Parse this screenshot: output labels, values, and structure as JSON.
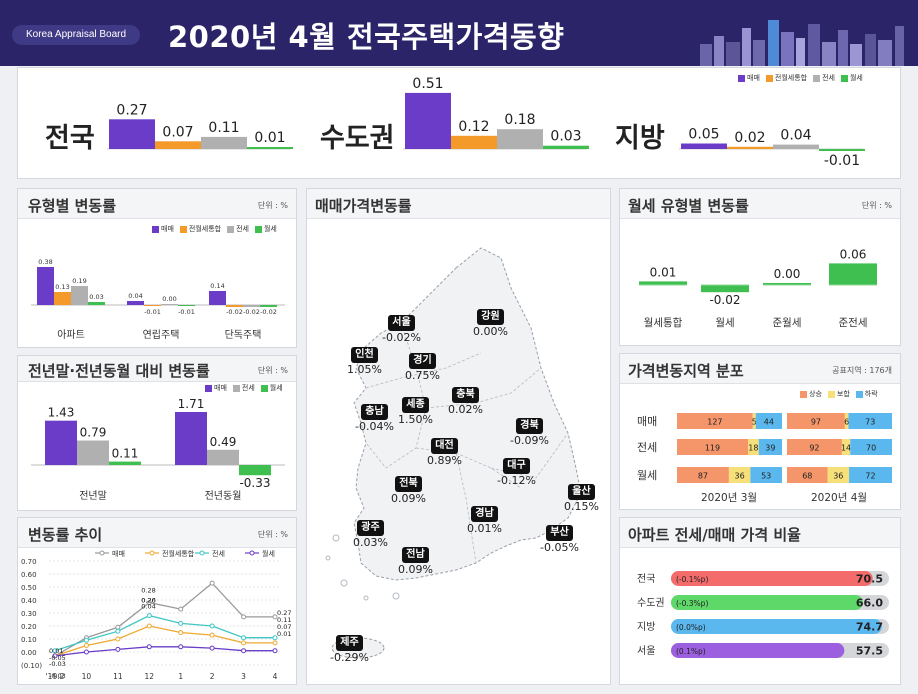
{
  "header": {
    "badge": "Korea Appraisal Board",
    "title": "2020년 4월  전국주택가격동향"
  },
  "top_legend": [
    "매매",
    "전월세통합",
    "전세",
    "월세"
  ],
  "colors": {
    "sale": "#6a3cc8",
    "rent_all": "#f39a2b",
    "jeonse": "#b0b0b0",
    "wolse": "#3fbf4f",
    "rise": "#f4956a",
    "flat": "#f7df7a",
    "fall": "#5ab8ee",
    "header_bg": "#2b2468"
  },
  "summary": [
    {
      "region": "전국",
      "values": [
        "0.27",
        "0.07",
        "0.11",
        "0.01"
      ]
    },
    {
      "region": "수도권",
      "values": [
        "0.51",
        "0.12",
        "0.18",
        "0.03"
      ]
    },
    {
      "region": "지방",
      "values": [
        "0.05",
        "0.02",
        "0.04",
        "-0.01"
      ]
    }
  ],
  "type_panel": {
    "title": "유형별 변동률",
    "unit": "단위 : %",
    "legend": [
      "매매",
      "전월세통합",
      "전세",
      "월세"
    ]
  },
  "yoy_panel": {
    "title": "전년말·전년동월 대비 변동률",
    "unit": "단위 : %",
    "legend": [
      "매매",
      "전세",
      "월세"
    ]
  },
  "trend_panel": {
    "title": "변동률 추이",
    "unit": "단위 : %",
    "legend": [
      "매매",
      "전월세통합",
      "전세",
      "월세"
    ]
  },
  "map_panel": {
    "title": "매매가격변동률",
    "regions": [
      {
        "name": "서울",
        "value": "-0.02%"
      },
      {
        "name": "강원",
        "value": "0.00%"
      },
      {
        "name": "인천",
        "value": "1.05%"
      },
      {
        "name": "경기",
        "value": "0.75%"
      },
      {
        "name": "충남",
        "value": "-0.04%"
      },
      {
        "name": "세종",
        "value": "1.50%"
      },
      {
        "name": "충북",
        "value": "0.02%"
      },
      {
        "name": "경북",
        "value": "-0.09%"
      },
      {
        "name": "대전",
        "value": "0.89%"
      },
      {
        "name": "대구",
        "value": "-0.12%"
      },
      {
        "name": "전북",
        "value": "0.09%"
      },
      {
        "name": "울산",
        "value": "0.15%"
      },
      {
        "name": "경남",
        "value": "0.01%"
      },
      {
        "name": "광주",
        "value": "0.03%"
      },
      {
        "name": "부산",
        "value": "-0.05%"
      },
      {
        "name": "전남",
        "value": "0.09%"
      },
      {
        "name": "제주",
        "value": "-0.29%"
      }
    ]
  },
  "wolse_panel": {
    "title": "월세 유형별 변동률",
    "unit": "단위 : %"
  },
  "dist_panel": {
    "title": "가격변동지역 분포",
    "unit": "공표지역 : 176개",
    "legend": [
      "상승",
      "보합",
      "하락"
    ],
    "periods": [
      "2020년 3월",
      "2020년 4월"
    ],
    "rows": [
      {
        "label": "매매",
        "mar": [
          127,
          5,
          44
        ],
        "apr": [
          97,
          6,
          73
        ]
      },
      {
        "label": "전세",
        "mar": [
          119,
          18,
          39
        ],
        "apr": [
          92,
          14,
          70
        ]
      },
      {
        "label": "월세",
        "mar": [
          87,
          36,
          53
        ],
        "apr": [
          68,
          36,
          72
        ]
      }
    ]
  },
  "ratio_panel": {
    "title": "아파트 전세/매매 가격 비율",
    "rows": [
      {
        "label": "전국",
        "change": "(-0.1%p)",
        "value": "70.5",
        "color": "#f36b6b",
        "ratio": 70.5
      },
      {
        "label": "수도권",
        "change": "(-0.3%p)",
        "value": "66.0",
        "color": "#5fd86a",
        "ratio": 66.0
      },
      {
        "label": "지방",
        "change": "(0.0%p)",
        "value": "74.7",
        "color": "#5ab8ee",
        "ratio": 74.7
      },
      {
        "label": "서울",
        "change": "(0.1%p)",
        "value": "57.5",
        "color": "#9b5fe0",
        "ratio": 57.5
      }
    ]
  },
  "chart_data": [
    {
      "type": "bar",
      "categories": [
        "전국",
        "수도권",
        "지방"
      ],
      "series": [
        {
          "name": "매매",
          "values": [
            0.27,
            0.51,
            0.05
          ]
        },
        {
          "name": "전월세통합",
          "values": [
            0.07,
            0.12,
            0.02
          ]
        },
        {
          "name": "전세",
          "values": [
            0.11,
            0.18,
            0.04
          ]
        },
        {
          "name": "월세",
          "values": [
            0.01,
            0.03,
            -0.01
          ]
        }
      ]
    },
    {
      "type": "bar",
      "title": "유형별 변동률",
      "categories": [
        "아파트",
        "연립주택",
        "단독주택"
      ],
      "series": [
        {
          "name": "매매",
          "values": [
            0.38,
            0.04,
            0.14
          ]
        },
        {
          "name": "전월세통합",
          "values": [
            0.13,
            -0.01,
            -0.02
          ]
        },
        {
          "name": "전세",
          "values": [
            0.19,
            0.0,
            -0.02
          ]
        },
        {
          "name": "월세",
          "values": [
            0.03,
            -0.01,
            -0.02
          ]
        }
      ],
      "labels": [
        [
          "0.38",
          "0.13",
          "0.19",
          "0.03"
        ],
        [
          "0.04",
          "-0.01",
          "0.00",
          "-0.01"
        ],
        [
          "0.14",
          "-0.02",
          "-0.02",
          "-0.02"
        ]
      ]
    },
    {
      "type": "bar",
      "title": "전년말·전년동월 대비 변동률",
      "categories": [
        "전년말",
        "전년동월"
      ],
      "series": [
        {
          "name": "매매",
          "values": [
            1.43,
            1.71
          ]
        },
        {
          "name": "전세",
          "values": [
            0.79,
            0.49
          ]
        },
        {
          "name": "월세",
          "values": [
            0.11,
            -0.33
          ]
        }
      ]
    },
    {
      "type": "line",
      "title": "변동률 추이",
      "categories": [
        "'19.2",
        "10",
        "11",
        "12",
        "1",
        "2",
        "3",
        "4"
      ],
      "ylim": [
        -0.1,
        0.7
      ],
      "yticks": [
        "0.70",
        "0.60",
        "0.50",
        "0.40",
        "0.30",
        "0.20",
        "0.10",
        "0.00",
        "(0.10)"
      ],
      "series": [
        {
          "name": "매매",
          "values": [
            -0.03,
            0.11,
            0.19,
            0.38,
            0.33,
            0.53,
            0.27,
            0.27
          ]
        },
        {
          "name": "전월세통합",
          "values": [
            -0.03,
            0.05,
            0.1,
            0.2,
            0.15,
            0.13,
            0.07,
            0.07
          ]
        },
        {
          "name": "전세",
          "values": [
            0.01,
            0.09,
            0.16,
            0.28,
            0.22,
            0.2,
            0.11,
            0.11
          ]
        },
        {
          "name": "월세",
          "values": [
            -0.03,
            0.0,
            0.02,
            0.04,
            0.04,
            0.03,
            0.01,
            0.01
          ]
        }
      ],
      "point_labels": [
        "0.28",
        "0.26",
        "0.20",
        "0.04",
        "0.27",
        "0.11",
        "0.07",
        "0.01",
        "0.01",
        "-0.05",
        "-0.03",
        "-0.03"
      ]
    },
    {
      "type": "bar",
      "title": "월세 유형별 변동률",
      "categories": [
        "월세통합",
        "월세",
        "준월세",
        "준전세"
      ],
      "values": [
        0.01,
        -0.02,
        0.0,
        0.06
      ],
      "labels": [
        "0.01",
        "-0.02",
        "0.00",
        "0.06"
      ]
    }
  ]
}
